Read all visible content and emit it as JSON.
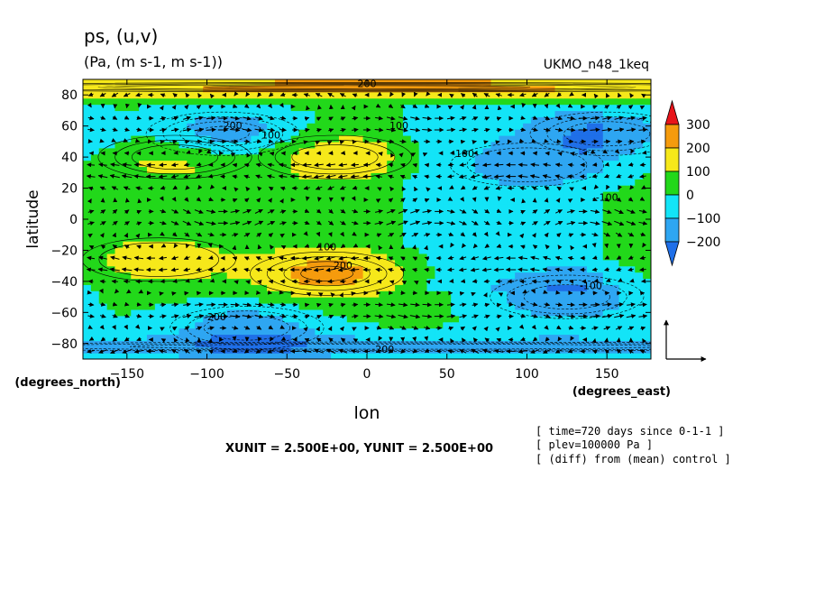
{
  "chart_data": {
    "type": "heatmap",
    "title": "ps, (u,v)",
    "subtitle": "(Pa, (m s-1, m s-1))",
    "dataset": "UKMO_n48_1keq",
    "xlabel": "lon",
    "ylabel": "latitude",
    "x_units": "(degrees_east)",
    "y_units": "(degrees_north)",
    "xlim": [
      -177.5,
      177.5
    ],
    "ylim": [
      -90,
      90
    ],
    "x_ticks": [
      -150,
      -100,
      -50,
      0,
      50,
      100,
      150
    ],
    "y_ticks": [
      -80,
      -60,
      -40,
      -20,
      0,
      20,
      40,
      60,
      80
    ],
    "colorbar": {
      "levels": [
        -200,
        -100,
        0,
        100,
        200,
        300
      ],
      "labels": [
        "300",
        "200",
        "100",
        "0",
        "−100",
        "−200"
      ],
      "colors": [
        "#1f6fe8",
        "#2ea6f2",
        "#13e4f7",
        "#22d81a",
        "#f6e81a",
        "#f59b0d",
        "#e8141a"
      ],
      "extend": "both"
    },
    "contour_labels": [
      "200",
      "100",
      "-100",
      "-200"
    ],
    "vector_reference": "XUNIT = 2.500E+00, YUNIT = 2.500E+00",
    "notes": [
      "[ time=720 days since 0-1-1 ]",
      "[ plev=100000 Pa ]",
      "[ (diff) from (mean) control ]"
    ],
    "features": [
      {
        "lon": -120,
        "lat": 40,
        "value": 150
      },
      {
        "lon": -20,
        "lat": 40,
        "value": 160
      },
      {
        "lon": -130,
        "lat": -26,
        "value": 140
      },
      {
        "lon": -25,
        "lat": -35,
        "value": 230
      },
      {
        "lon": -90,
        "lat": 55,
        "value": -210
      },
      {
        "lon": 150,
        "lat": 55,
        "value": -190
      },
      {
        "lon": 100,
        "lat": 35,
        "value": -110
      },
      {
        "lon": 125,
        "lat": -50,
        "value": -200
      },
      {
        "lon": -75,
        "lat": -70,
        "value": -180
      },
      {
        "lon": 20,
        "lat": -82,
        "value": -160
      },
      {
        "lon": 0,
        "lat": 85,
        "value": 220
      }
    ]
  }
}
